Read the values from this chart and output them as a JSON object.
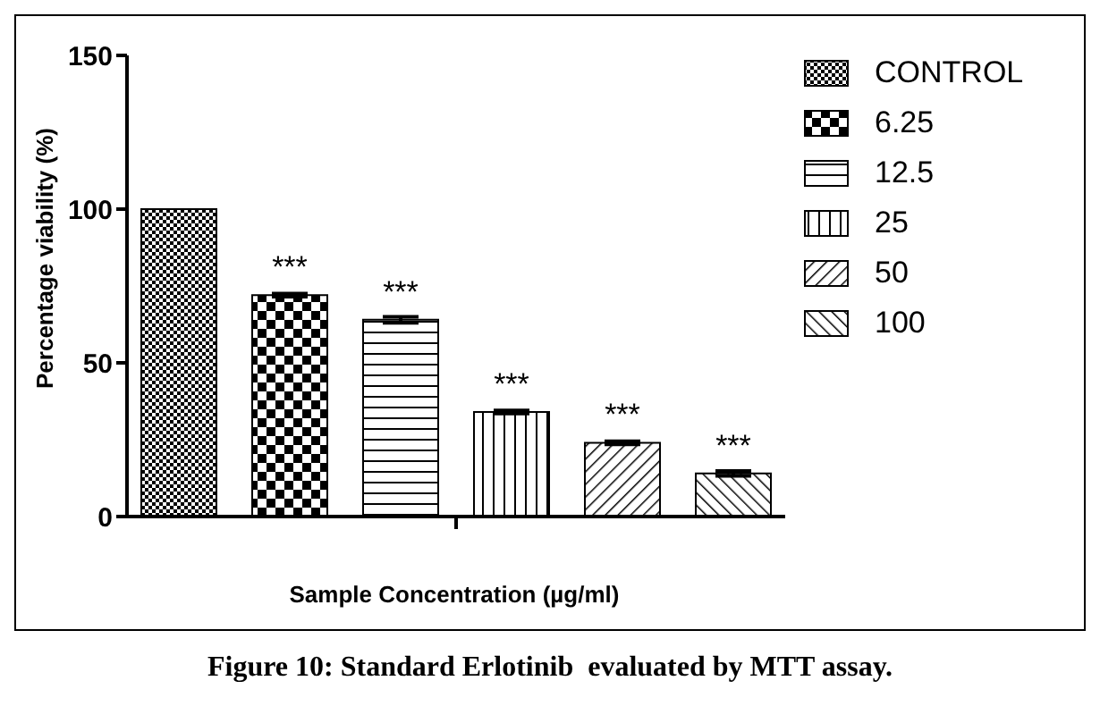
{
  "chart_data": {
    "type": "bar",
    "xlabel": "Sample Concentration (µg/ml)",
    "ylabel": "Percentage viability (%)",
    "categories": [
      null
    ],
    "series": [
      {
        "name": "CONTROL",
        "color": "#000000",
        "values": [
          100
        ],
        "errors": [
          0
        ]
      },
      {
        "name": "6.25",
        "color": "#000000",
        "values": [
          72
        ],
        "errors": [
          0.5
        ],
        "value_labels": [
          "***"
        ]
      },
      {
        "name": "12.5",
        "color": "#000000",
        "values": [
          64
        ],
        "errors": [
          1
        ],
        "value_labels": [
          "***"
        ]
      },
      {
        "name": "25",
        "color": "#000000",
        "values": [
          34
        ],
        "errors": [
          0.5
        ],
        "value_labels": [
          "***"
        ]
      },
      {
        "name": "50",
        "color": "#000000",
        "values": [
          24
        ],
        "errors": [
          0.5
        ],
        "value_labels": [
          "***"
        ]
      },
      {
        "name": "100",
        "color": "#000000",
        "values": [
          14
        ],
        "errors": [
          0.8
        ],
        "value_labels": [
          "***"
        ]
      }
    ],
    "ylim": [
      0,
      150
    ],
    "yticks": [
      0,
      50,
      100,
      150
    ],
    "grid": false,
    "legend": "right",
    "annotations": [
      "Figure 10: Standard Erlotinib  evaluated by MTT assay."
    ]
  }
}
